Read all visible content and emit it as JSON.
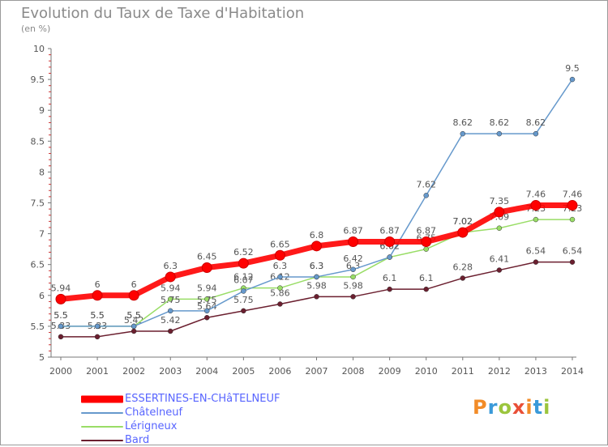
{
  "chart_data": {
    "type": "line",
    "title": "Evolution du Taux de Taxe d'Habitation",
    "subtitle": "(en %)",
    "xlabel": "",
    "ylabel": "",
    "x": [
      2000,
      2001,
      2002,
      2003,
      2004,
      2005,
      2006,
      2007,
      2008,
      2009,
      2010,
      2011,
      2012,
      2013,
      2014
    ],
    "ylim": [
      5,
      10
    ],
    "yticks": [
      5,
      5.5,
      6,
      6.5,
      7,
      7.5,
      8,
      8.5,
      9,
      9.5,
      10
    ],
    "grid": false,
    "legend_position": "bottom-left",
    "series": [
      {
        "name": "ESSERTINES-EN-CHâTELNEUF",
        "color": "#ff0000",
        "values": [
          5.94,
          6,
          6,
          6.3,
          6.45,
          6.52,
          6.65,
          6.8,
          6.87,
          6.87,
          6.87,
          7.02,
          7.35,
          7.46,
          7.46
        ]
      },
      {
        "name": "Châtelneuf",
        "color": "#6699cc",
        "values": [
          5.5,
          5.5,
          5.5,
          5.75,
          5.75,
          6.07,
          6.3,
          6.3,
          6.42,
          6.62,
          7.62,
          8.62,
          8.62,
          8.62,
          9.5
        ]
      },
      {
        "name": "Lérigneux",
        "color": "#99dd66",
        "values": [
          5.5,
          5.5,
          5.5,
          5.94,
          5.94,
          6.12,
          6.12,
          6.3,
          6.3,
          6.62,
          6.75,
          7.02,
          7.09,
          7.23,
          7.23
        ]
      },
      {
        "name": "Bard",
        "color": "#6b1f2f",
        "values": [
          5.33,
          5.33,
          5.42,
          5.42,
          5.64,
          5.75,
          5.86,
          5.98,
          5.98,
          6.1,
          6.1,
          6.28,
          6.41,
          6.54,
          6.54
        ]
      }
    ]
  },
  "branding": {
    "text": "Proxiti",
    "colors": [
      "#f28c28",
      "#3a9ad9",
      "#9bc53d",
      "#e94f37"
    ]
  }
}
